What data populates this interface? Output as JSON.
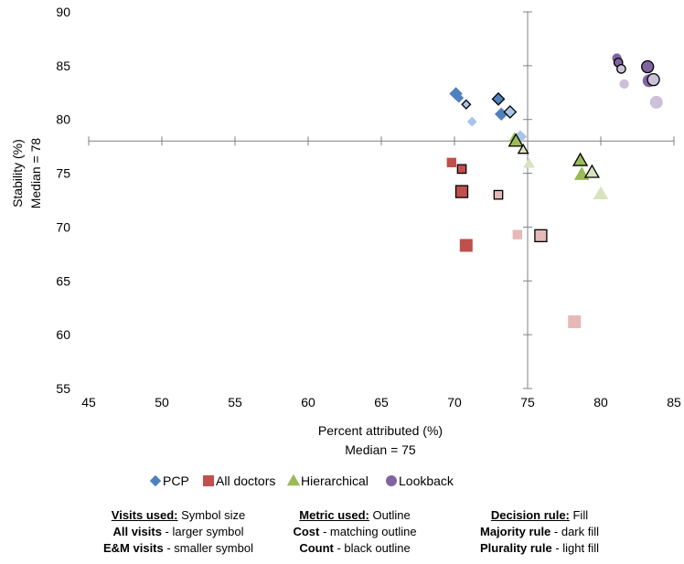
{
  "chart_data": {
    "type": "scatter",
    "xlabel": "Percent attributed (%)",
    "xlabel_sub": "Median = 75",
    "ylabel": "Stability (%)",
    "ylabel_sub": "Median = 78",
    "xlim": [
      45,
      85
    ],
    "ylim": [
      55,
      90
    ],
    "x_ticks": [
      "45",
      "50",
      "55",
      "60",
      "65",
      "70",
      "75",
      "80",
      "85"
    ],
    "y_ticks": [
      "55",
      "60",
      "65",
      "70",
      "75",
      "80",
      "85",
      "90"
    ],
    "x_median": 75,
    "y_median": 78,
    "grid": false,
    "legend_position": "bottom",
    "series": [
      {
        "name": "PCP",
        "shape": "diamond",
        "color": "#4f81bd",
        "light_color": "#a9c4e8",
        "points": [
          {
            "x": 70.1,
            "y": 82.4,
            "size": "large",
            "outline": "matching",
            "fill": "dark"
          },
          {
            "x": 70.3,
            "y": 82.0,
            "size": "small",
            "outline": "matching",
            "fill": "dark"
          },
          {
            "x": 70.8,
            "y": 81.4,
            "size": "small",
            "outline": "black",
            "fill": "light"
          },
          {
            "x": 71.2,
            "y": 79.8,
            "size": "small",
            "outline": "matching",
            "fill": "light"
          },
          {
            "x": 73.0,
            "y": 81.9,
            "size": "large",
            "outline": "black",
            "fill": "dark"
          },
          {
            "x": 73.2,
            "y": 80.5,
            "size": "large",
            "outline": "matching",
            "fill": "dark"
          },
          {
            "x": 73.8,
            "y": 80.7,
            "size": "large",
            "outline": "black",
            "fill": "light"
          },
          {
            "x": 74.5,
            "y": 78.4,
            "size": "large",
            "outline": "matching",
            "fill": "light"
          }
        ]
      },
      {
        "name": "All doctors",
        "shape": "square",
        "color": "#c0504d",
        "light_color": "#e6b9b8",
        "points": [
          {
            "x": 69.8,
            "y": 76.0,
            "size": "small",
            "outline": "matching",
            "fill": "dark"
          },
          {
            "x": 70.5,
            "y": 75.4,
            "size": "small",
            "outline": "black",
            "fill": "dark"
          },
          {
            "x": 70.5,
            "y": 73.3,
            "size": "large",
            "outline": "black",
            "fill": "dark"
          },
          {
            "x": 70.8,
            "y": 68.3,
            "size": "large",
            "outline": "matching",
            "fill": "dark"
          },
          {
            "x": 73.0,
            "y": 73.0,
            "size": "small",
            "outline": "black",
            "fill": "light"
          },
          {
            "x": 74.3,
            "y": 69.3,
            "size": "small",
            "outline": "matching",
            "fill": "light"
          },
          {
            "x": 75.9,
            "y": 69.2,
            "size": "large",
            "outline": "black",
            "fill": "light"
          },
          {
            "x": 78.2,
            "y": 61.2,
            "size": "large",
            "outline": "matching",
            "fill": "light"
          }
        ]
      },
      {
        "name": "Hierarchical",
        "shape": "triangle",
        "color": "#9bbb59",
        "light_color": "#d7e4bd",
        "points": [
          {
            "x": 74.1,
            "y": 78.3,
            "size": "small",
            "outline": "matching",
            "fill": "dark"
          },
          {
            "x": 74.2,
            "y": 78.0,
            "size": "large",
            "outline": "black",
            "fill": "dark"
          },
          {
            "x": 74.7,
            "y": 77.2,
            "size": "small",
            "outline": "black",
            "fill": "light"
          },
          {
            "x": 75.1,
            "y": 75.9,
            "size": "small",
            "outline": "matching",
            "fill": "light"
          },
          {
            "x": 78.6,
            "y": 76.2,
            "size": "large",
            "outline": "black",
            "fill": "dark"
          },
          {
            "x": 78.7,
            "y": 74.9,
            "size": "large",
            "outline": "matching",
            "fill": "dark"
          },
          {
            "x": 79.4,
            "y": 75.1,
            "size": "large",
            "outline": "black",
            "fill": "light"
          },
          {
            "x": 80.0,
            "y": 73.1,
            "size": "large",
            "outline": "matching",
            "fill": "light"
          }
        ]
      },
      {
        "name": "Lookback",
        "shape": "circle",
        "color": "#8064a2",
        "light_color": "#ccc0da",
        "points": [
          {
            "x": 81.1,
            "y": 85.7,
            "size": "small",
            "outline": "matching",
            "fill": "dark"
          },
          {
            "x": 81.2,
            "y": 85.3,
            "size": "small",
            "outline": "black",
            "fill": "dark"
          },
          {
            "x": 81.4,
            "y": 84.7,
            "size": "small",
            "outline": "black",
            "fill": "light"
          },
          {
            "x": 81.6,
            "y": 83.3,
            "size": "small",
            "outline": "matching",
            "fill": "light"
          },
          {
            "x": 83.2,
            "y": 84.9,
            "size": "large",
            "outline": "black",
            "fill": "dark"
          },
          {
            "x": 83.3,
            "y": 83.6,
            "size": "large",
            "outline": "matching",
            "fill": "dark"
          },
          {
            "x": 83.6,
            "y": 83.7,
            "size": "large",
            "outline": "black",
            "fill": "light"
          },
          {
            "x": 83.8,
            "y": 81.6,
            "size": "large",
            "outline": "matching",
            "fill": "light"
          }
        ]
      }
    ]
  },
  "notes": {
    "visits": {
      "header_bold": "Visits used:",
      "header_rest": " Symbol size",
      "line1_bold": "All visits",
      "line1_rest": " - larger symbol",
      "line2_bold": "E&M visits",
      "line2_rest": " - smaller symbol"
    },
    "metric": {
      "header_bold": "Metric used:",
      "header_rest": " Outline",
      "line1_bold": "Cost",
      "line1_rest": " - matching outline",
      "line2_bold": "Count",
      "line2_rest": " - black outline"
    },
    "decision": {
      "header_bold": "Decision rule:",
      "header_rest": " Fill",
      "line1_bold": "Majority rule",
      "line1_rest": " - dark fill",
      "line2_bold": "Plurality rule",
      "line2_rest": " - light fill"
    }
  }
}
